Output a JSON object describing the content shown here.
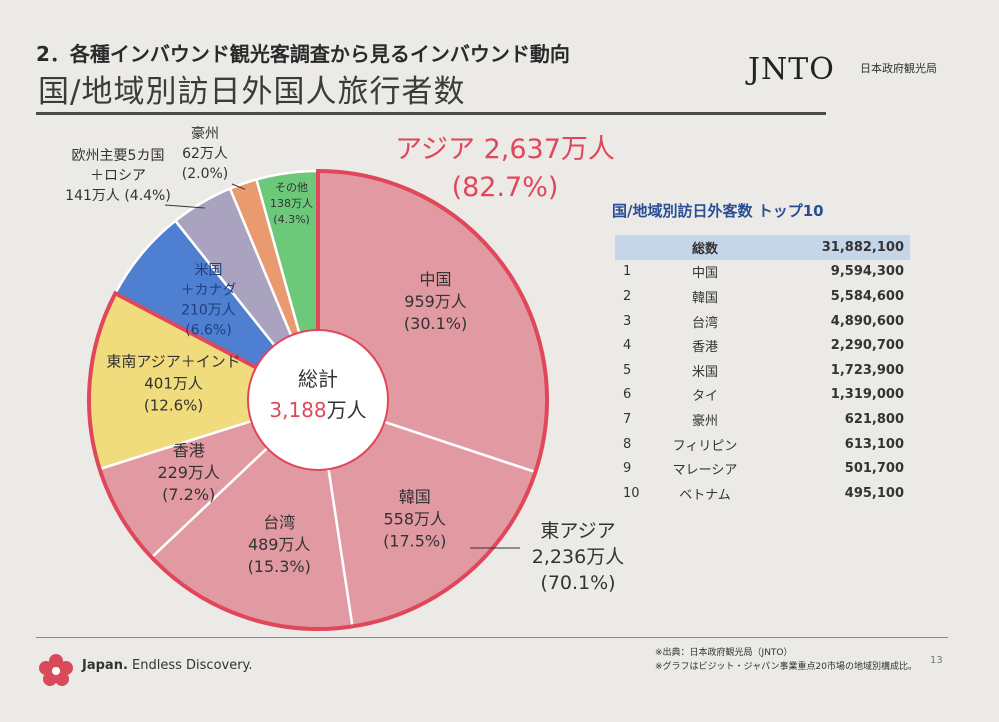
{
  "header": {
    "subtitle": "2．各種インバウンド観光客調査から見るインバウンド動向",
    "title": "国/地域別訪日外国人旅行者数",
    "logo_text": "JNTO",
    "logo_sub": "日本政府観光局"
  },
  "chart_data": {
    "type": "pie",
    "style": "donut",
    "unit": "万人",
    "center_label": {
      "line1": "総計",
      "value": "3,188",
      "unit": "万人"
    },
    "slices": [
      {
        "key": "china",
        "name": "中国",
        "value": 959,
        "value_text": "959万人",
        "pct": "(30.1%)",
        "color": "#e29aa2"
      },
      {
        "key": "korea",
        "name": "韓国",
        "value": 558,
        "value_text": "558万人",
        "pct": "(17.5%)",
        "color": "#e29aa2"
      },
      {
        "key": "taiwan",
        "name": "台湾",
        "value": 489,
        "value_text": "489万人",
        "pct": "(15.3%)",
        "color": "#e29aa2"
      },
      {
        "key": "hongkong",
        "name": "香港",
        "value": 229,
        "value_text": "229万人",
        "pct": "(7.2%)",
        "color": "#e29aa2"
      },
      {
        "key": "sea",
        "name": "東南アジア＋インド",
        "value": 401,
        "value_text": "401万人",
        "pct": "(12.6%)",
        "color": "#f0dc7c"
      },
      {
        "key": "us",
        "name": "米国",
        "name2": "＋カナダ",
        "value": 210,
        "value_text": "210万人",
        "pct": "(6.6%)",
        "color": "#4f7fd0"
      },
      {
        "key": "europe",
        "name": "欧州主要5カ国",
        "name2": "＋ロシア",
        "value": 141,
        "value_text": "141万人 (4.4%)",
        "color": "#a9a3bf"
      },
      {
        "key": "australia",
        "name": "豪州",
        "value": 62,
        "value_text": "62万人",
        "pct": "(2.0%)",
        "color": "#e99a6e"
      },
      {
        "key": "other",
        "name": "その他",
        "value": 138,
        "value_text": "138万人",
        "pct": "(4.3%)",
        "color": "#6cc97a"
      }
    ],
    "group_asia": {
      "label": "アジア 2,637万人",
      "pct": "(82.7%)",
      "color": "#e0475a"
    },
    "group_east_asia": {
      "label1": "東アジア",
      "label2": "2,236万人",
      "pct": "(70.1%)"
    },
    "border_color": "#e0475a"
  },
  "ranking": {
    "title": "国/地域別訪日外客数 トップ10",
    "total_label": "総数",
    "total_value": "31,882,100",
    "rows": [
      {
        "rank": "1",
        "name": "中国",
        "value": "9,594,300"
      },
      {
        "rank": "2",
        "name": "韓国",
        "value": "5,584,600"
      },
      {
        "rank": "3",
        "name": "台湾",
        "value": "4,890,600"
      },
      {
        "rank": "4",
        "name": "香港",
        "value": "2,290,700"
      },
      {
        "rank": "5",
        "name": "米国",
        "value": "1,723,900"
      },
      {
        "rank": "6",
        "name": "タイ",
        "value": "1,319,000"
      },
      {
        "rank": "7",
        "name": "豪州",
        "value": "621,800"
      },
      {
        "rank": "8",
        "name": "フィリピン",
        "value": "613,100"
      },
      {
        "rank": "9",
        "name": "マレーシア",
        "value": "501,700"
      },
      {
        "rank": "10",
        "name": "ベトナム",
        "value": "495,100"
      }
    ]
  },
  "footer": {
    "brand_bold": "Japan.",
    "brand_rest": "Endless Discovery.",
    "source1": "※出典：日本政府観光局（JNTO）",
    "source2": "※グラフはビジット・ジャパン事業重点20市場の地域別構成比。",
    "page": "13"
  }
}
